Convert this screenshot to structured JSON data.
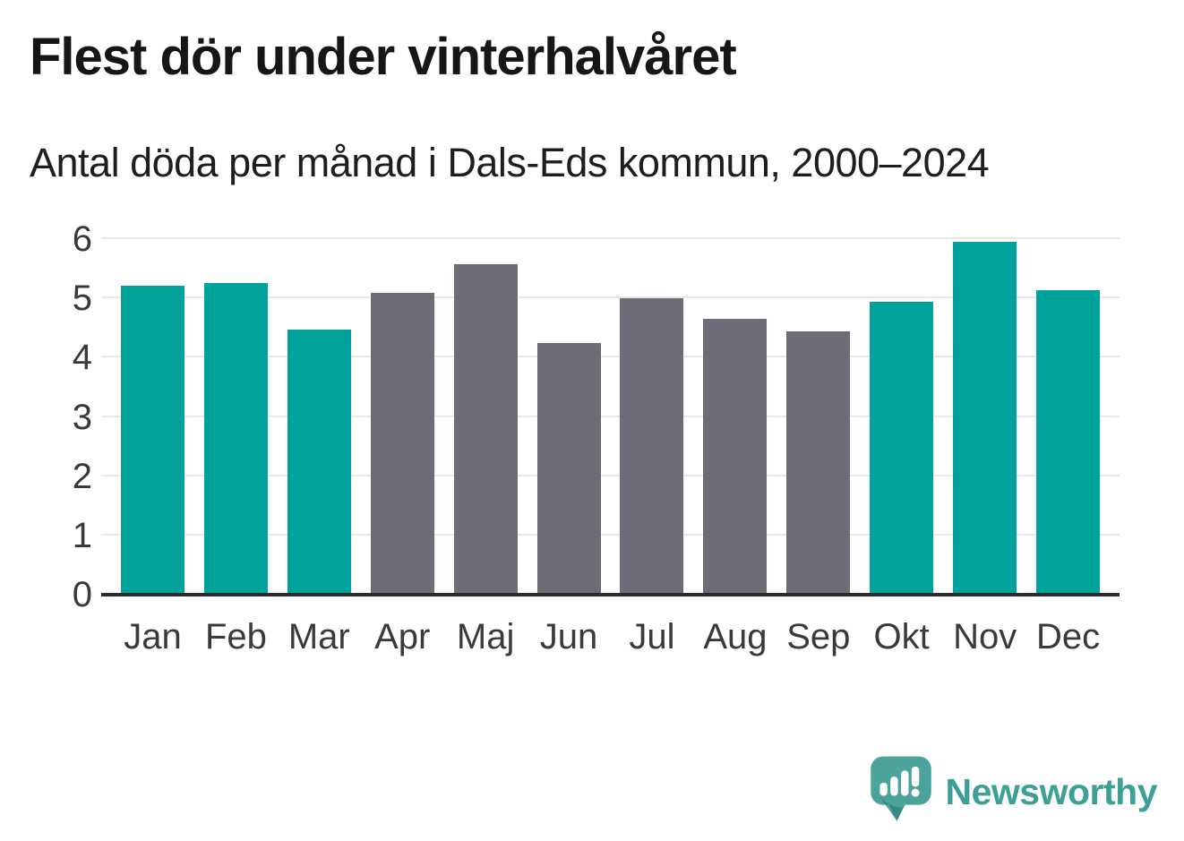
{
  "header": {
    "title": "Flest dör under vinterhalvåret",
    "subtitle": "Antal döda per månad i Dals-Eds kommun, 2000–2024"
  },
  "chart_data": {
    "type": "bar",
    "title": "Flest dör under vinterhalvåret",
    "subtitle": "Antal döda per månad i Dals-Eds kommun, 2000–2024",
    "categories": [
      "Jan",
      "Feb",
      "Mar",
      "Apr",
      "Maj",
      "Jun",
      "Jul",
      "Aug",
      "Sep",
      "Okt",
      "Nov",
      "Dec"
    ],
    "values": [
      5.22,
      5.26,
      4.48,
      5.1,
      5.58,
      4.24,
      5.01,
      4.65,
      4.45,
      4.94,
      5.96,
      5.14
    ],
    "winter_half_year": [
      true,
      true,
      true,
      false,
      false,
      false,
      false,
      false,
      false,
      true,
      true,
      true
    ],
    "colors": {
      "winter_bar": "#00a39b",
      "summer_bar": "#6c6b76"
    },
    "xlabel": "",
    "ylabel": "",
    "ylim": [
      0,
      6
    ],
    "yticks": [
      0,
      1,
      2,
      3,
      4,
      5,
      6
    ],
    "grid": "horizontal-only",
    "legend": "none"
  },
  "footer": {
    "brand": "Newsworthy",
    "brand_color": "#3da096",
    "icon": "newsworthy-speech-bubble-bar-chart-icon"
  }
}
